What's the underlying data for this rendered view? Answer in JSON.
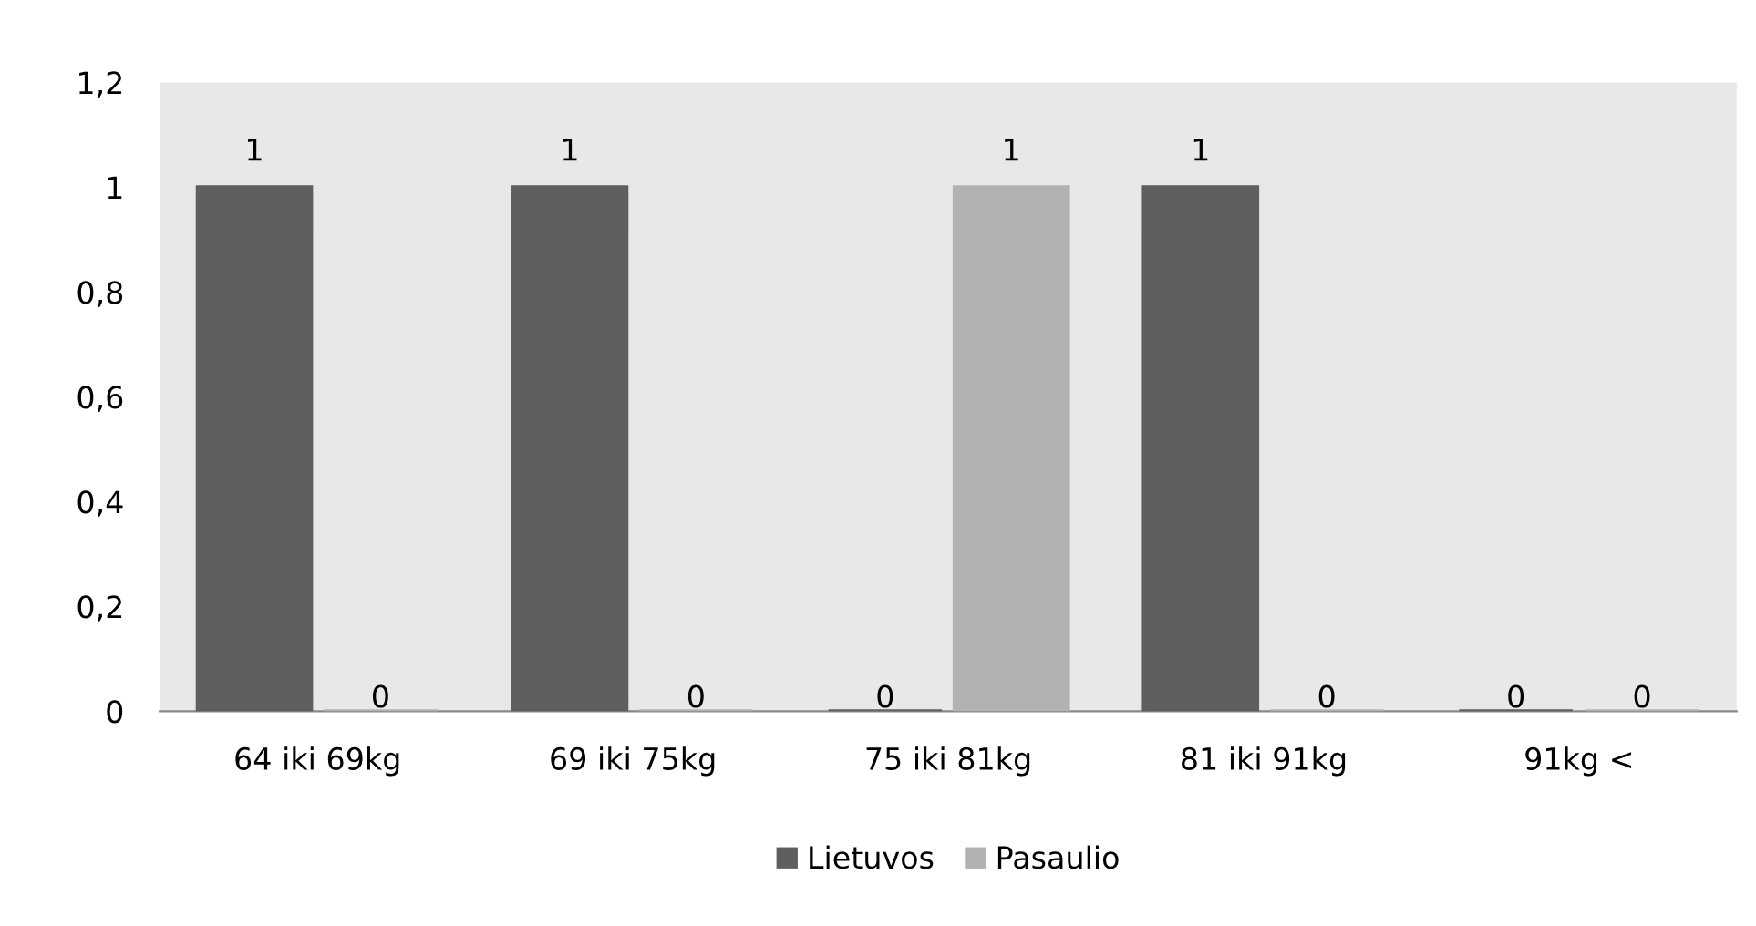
{
  "chart_data": {
    "type": "bar",
    "categories": [
      "64 iki 69kg",
      "69 iki 75kg",
      "75 iki 81kg",
      "81 iki 91kg",
      "91kg <"
    ],
    "series": [
      {
        "name": "Lietuvos",
        "color": "#5f5f5f",
        "values": [
          1,
          1,
          0,
          1,
          0
        ]
      },
      {
        "name": "Pasaulio",
        "color": "#b2b2b2",
        "values": [
          0,
          0,
          1,
          0,
          0
        ]
      }
    ],
    "ylim": [
      0,
      1.2
    ],
    "yticks": [
      0,
      {
        "value": 0.2,
        "label": "0,2"
      },
      {
        "value": 0.4,
        "label": "0,4"
      },
      {
        "value": 0.6,
        "label": "0,6"
      },
      {
        "value": 0.8,
        "label": "0,8"
      },
      1,
      {
        "value": 1.2,
        "label": "1,2"
      }
    ],
    "data_labels": true,
    "legend": "bottom",
    "grid": false
  }
}
